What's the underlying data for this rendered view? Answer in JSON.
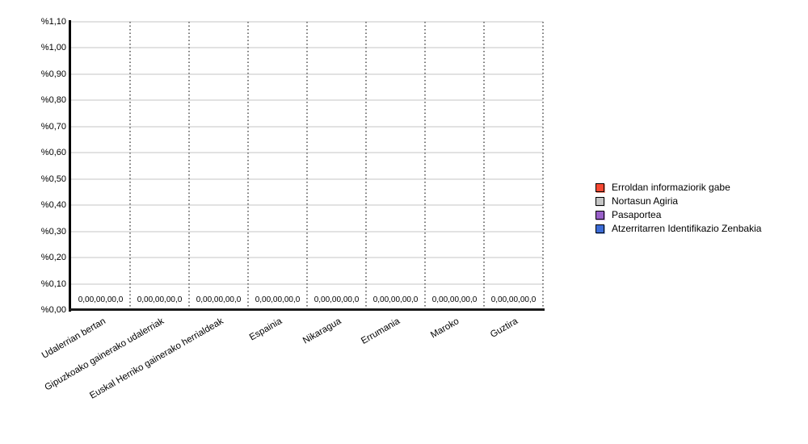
{
  "chart": {
    "background": "#FFFFFF",
    "axis_color": "#000000",
    "gridline_color": "#E2E2E2",
    "separator_color": "#7A7A7A",
    "text_color": "#000000"
  },
  "chart_data": {
    "type": "bar",
    "title": "",
    "xlabel": "",
    "ylabel": "",
    "ylim": [
      0,
      1.1
    ],
    "ytick_step": 0.1,
    "grid": true,
    "legend_position": "right",
    "yticks": [
      "%1,10",
      "%1,00",
      "%0,90",
      "%0,80",
      "%0,70",
      "%0,60",
      "%0,50",
      "%0,40",
      "%0,30",
      "%0,20",
      "%0,10",
      "%0,00"
    ],
    "categories": [
      "Udalerrian bertan",
      "Gipuzkoako gainerako udalerriak",
      "Euskal Herriko gainerako herrialdeak",
      "Espainia",
      "Nikaragua",
      "Errumania",
      "Maroko",
      "Guztira"
    ],
    "series": [
      {
        "name": "Erroldan informaziorik gabe",
        "color": "#F74832",
        "halo": "#FA9C8A",
        "values": [
          0.0,
          0.0,
          0.0,
          0.0,
          0.0,
          0.0,
          0.0,
          0.0
        ]
      },
      {
        "name": "Nortasun Agiria",
        "color": "#C6C6C6",
        "halo": "#E3E3E3",
        "values": [
          0.0,
          0.0,
          0.0,
          0.0,
          0.0,
          0.0,
          0.0,
          0.0
        ]
      },
      {
        "name": "Pasaportea",
        "color": "#995FC9",
        "halo": "#CBA9E5",
        "values": [
          0.0,
          0.0,
          0.0,
          0.0,
          0.0,
          0.0,
          0.0,
          0.0
        ]
      },
      {
        "name": "Atzerritarren Identifikazio Zenbakia",
        "color": "#3C6CD7",
        "halo": "#A5BEEC",
        "values": [
          0.0,
          0.0,
          0.0,
          0.0,
          0.0,
          0.0,
          0.0,
          0.0
        ]
      }
    ],
    "cell_labels": [
      "0,00,00,00,0",
      "0,00,00,00,0",
      "0,00,00,00,0",
      "0,00,00,00,0",
      "0,00,00,00,0",
      "0,00,00,00,0",
      "0,00,00,00,0",
      "0,00,00,00,0"
    ]
  }
}
